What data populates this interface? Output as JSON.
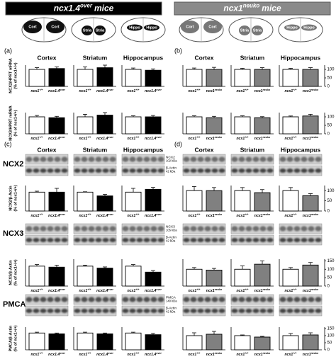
{
  "headers": [
    {
      "base": "ncx1.4",
      "sup": "over",
      "tail": "mice"
    },
    {
      "base": "ncx1",
      "sup": "neuko",
      "tail": "mice"
    }
  ],
  "brains": [
    [
      "Cort",
      "Cort"
    ],
    [
      "Stria",
      "Stria"
    ],
    [
      "Hippo",
      "Hippo"
    ]
  ],
  "panels": [
    "(a)",
    "(b)",
    "(c)",
    "(d)"
  ],
  "regions": [
    "Cortex",
    "Striatum",
    "Hippocampus"
  ],
  "protein_labels": [
    "NCX2",
    "NCX3",
    "PMCA"
  ],
  "blot_labels": [
    {
      "name": "NCX2",
      "kda": "102 kDa"
    },
    {
      "name": "NCX3",
      "kda": "105 kDa"
    },
    {
      "name": "PMCA",
      "kda": "140 kDa"
    }
  ],
  "actin": {
    "name": "β-Actin",
    "kda": "42 kDa"
  },
  "chart_data": [
    {
      "type": "bar",
      "categories": [
        {
          "base": "ncx1",
          "sup": "+/+"
        },
        {
          "base": "ncx1.4",
          "sup": "over"
        }
      ],
      "values": [
        100,
        105
      ],
      "errors": [
        10,
        10
      ],
      "colors": [
        "#ffffff",
        "#000000"
      ],
      "ylim": [
        0,
        125
      ],
      "ylabel": [
        "NCX2/HPRT mRNA",
        "(% of ncx1+/+)"
      ]
    },
    {
      "type": "bar",
      "categories": [
        {
          "base": "ncx1",
          "sup": "+/+"
        },
        {
          "base": "ncx1.4",
          "sup": "over"
        }
      ],
      "values": [
        100,
        110
      ],
      "errors": [
        15,
        15
      ],
      "colors": [
        "#ffffff",
        "#000000"
      ],
      "ylim": [
        0,
        125
      ]
    },
    {
      "type": "bar",
      "categories": [
        {
          "base": "ncx1",
          "sup": "+/+"
        },
        {
          "base": "ncx1.4",
          "sup": "over"
        }
      ],
      "values": [
        100,
        95
      ],
      "errors": [
        8,
        8
      ],
      "colors": [
        "#ffffff",
        "#000000"
      ],
      "ylim": [
        0,
        125
      ]
    },
    {
      "type": "bar",
      "categories": [
        {
          "base": "ncx1",
          "sup": "+/+"
        },
        {
          "base": "ncx1.4",
          "sup": "over"
        }
      ],
      "values": [
        100,
        95
      ],
      "errors": [
        8,
        8
      ],
      "colors": [
        "#ffffff",
        "#000000"
      ],
      "ylim": [
        0,
        125
      ],
      "ylabel": [
        "NCX3/HPRT mRNA",
        "(% of ncx1+/+)"
      ]
    },
    {
      "type": "bar",
      "categories": [
        {
          "base": "ncx1",
          "sup": "+/+"
        },
        {
          "base": "ncx1.4",
          "sup": "over"
        }
      ],
      "values": [
        100,
        110
      ],
      "errors": [
        15,
        15
      ],
      "colors": [
        "#ffffff",
        "#000000"
      ],
      "ylim": [
        0,
        125
      ]
    },
    {
      "type": "bar",
      "categories": [
        {
          "base": "ncx1",
          "sup": "+/+"
        },
        {
          "base": "ncx1.4",
          "sup": "over"
        }
      ],
      "values": [
        100,
        100
      ],
      "errors": [
        6,
        8
      ],
      "colors": [
        "#ffffff",
        "#000000"
      ],
      "ylim": [
        0,
        125
      ]
    },
    {
      "type": "bar",
      "categories": [
        {
          "base": "ncx1",
          "sup": "+/+"
        },
        {
          "base": "ncx1",
          "sup": "neuko"
        }
      ],
      "values": [
        100,
        100
      ],
      "errors": [
        8,
        12
      ],
      "colors": [
        "#ffffff",
        "#808080"
      ],
      "ylim": [
        0,
        125
      ]
    },
    {
      "type": "bar",
      "categories": [
        {
          "base": "ncx1",
          "sup": "+/+"
        },
        {
          "base": "ncx1",
          "sup": "neuko"
        }
      ],
      "values": [
        100,
        100
      ],
      "errors": [
        6,
        10
      ],
      "colors": [
        "#ffffff",
        "#808080"
      ],
      "ylim": [
        0,
        125
      ]
    },
    {
      "type": "bar",
      "categories": [
        {
          "base": "ncx1",
          "sup": "+/+"
        },
        {
          "base": "ncx1",
          "sup": "neuko"
        }
      ],
      "values": [
        100,
        100
      ],
      "errors": [
        6,
        10
      ],
      "colors": [
        "#ffffff",
        "#808080"
      ],
      "ylim": [
        0,
        125
      ],
      "yticks": [
        0,
        50,
        100
      ]
    },
    {
      "type": "bar",
      "categories": [
        {
          "base": "ncx1",
          "sup": "+/+"
        },
        {
          "base": "ncx1",
          "sup": "neuko"
        }
      ],
      "values": [
        100,
        95
      ],
      "errors": [
        6,
        8
      ],
      "colors": [
        "#ffffff",
        "#808080"
      ],
      "ylim": [
        0,
        125
      ]
    },
    {
      "type": "bar",
      "categories": [
        {
          "base": "ncx1",
          "sup": "+/+"
        },
        {
          "base": "ncx1",
          "sup": "neuko"
        }
      ],
      "values": [
        100,
        95
      ],
      "errors": [
        6,
        6
      ],
      "colors": [
        "#ffffff",
        "#808080"
      ],
      "ylim": [
        0,
        125
      ]
    },
    {
      "type": "bar",
      "categories": [
        {
          "base": "ncx1",
          "sup": "+/+"
        },
        {
          "base": "ncx1",
          "sup": "neuko"
        }
      ],
      "values": [
        100,
        105
      ],
      "errors": [
        5,
        10
      ],
      "colors": [
        "#ffffff",
        "#808080"
      ],
      "ylim": [
        0,
        125
      ],
      "yticks": [
        0,
        50,
        100
      ]
    },
    {
      "type": "bar",
      "categories": [
        {
          "base": "ncx1",
          "sup": "+/+"
        },
        {
          "base": "ncx1.4",
          "sup": "over"
        }
      ],
      "values": [
        100,
        100
      ],
      "errors": [
        5,
        20
      ],
      "colors": [
        "#ffffff",
        "#000000"
      ],
      "ylim": [
        0,
        135
      ],
      "ylabel": [
        "NCX2/β-Actin",
        "(% of ncx1+/+)"
      ]
    },
    {
      "type": "bar",
      "categories": [
        {
          "base": "ncx1",
          "sup": "+/+"
        },
        {
          "base": "ncx1.4",
          "sup": "over"
        }
      ],
      "values": [
        100,
        80
      ],
      "errors": [
        2,
        8
      ],
      "colors": [
        "#ffffff",
        "#000000"
      ],
      "ylim": [
        0,
        135
      ]
    },
    {
      "type": "bar",
      "categories": [
        {
          "base": "ncx1",
          "sup": "+/+"
        },
        {
          "base": "ncx1.4",
          "sup": "over"
        }
      ],
      "values": [
        100,
        115
      ],
      "errors": [
        20,
        10
      ],
      "colors": [
        "#ffffff",
        "#000000"
      ],
      "ylim": [
        0,
        135
      ]
    },
    {
      "type": "bar",
      "categories": [
        {
          "base": "ncx1",
          "sup": "+/+"
        },
        {
          "base": "ncx1.4",
          "sup": "over"
        }
      ],
      "values": [
        100,
        95
      ],
      "errors": [
        8,
        10
      ],
      "colors": [
        "#ffffff",
        "#000000"
      ],
      "ylim": [
        0,
        135
      ],
      "ylabel": [
        "NCX3/β-Actin",
        "(% of ncx1+/+)"
      ]
    },
    {
      "type": "bar",
      "categories": [
        {
          "base": "ncx1",
          "sup": "+/+"
        },
        {
          "base": "ncx1.4",
          "sup": "over"
        }
      ],
      "values": [
        100,
        90
      ],
      "errors": [
        5,
        6
      ],
      "colors": [
        "#ffffff",
        "#000000"
      ],
      "ylim": [
        0,
        135
      ]
    },
    {
      "type": "bar",
      "categories": [
        {
          "base": "ncx1",
          "sup": "+/+"
        },
        {
          "base": "ncx1.4",
          "sup": "over"
        }
      ],
      "values": [
        100,
        70
      ],
      "errors": [
        8,
        8
      ],
      "colors": [
        "#ffffff",
        "#000000"
      ],
      "ylim": [
        0,
        135
      ]
    },
    {
      "type": "bar",
      "categories": [
        {
          "base": "ncx1",
          "sup": "+/+"
        },
        {
          "base": "ncx1.4",
          "sup": "over"
        }
      ],
      "values": [
        100,
        95
      ],
      "errors": [
        5,
        5
      ],
      "colors": [
        "#ffffff",
        "#000000"
      ],
      "ylim": [
        0,
        135
      ],
      "ylabel": [
        "PMCA/β-Actin",
        "(% of ncx1+/+)"
      ]
    },
    {
      "type": "bar",
      "categories": [
        {
          "base": "ncx1",
          "sup": "+/+"
        },
        {
          "base": "ncx1.4",
          "sup": "over"
        }
      ],
      "values": [
        100,
        95
      ],
      "errors": [
        5,
        5
      ],
      "colors": [
        "#ffffff",
        "#000000"
      ],
      "ylim": [
        0,
        135
      ]
    },
    {
      "type": "bar",
      "categories": [
        {
          "base": "ncx1",
          "sup": "+/+"
        },
        {
          "base": "ncx1.4",
          "sup": "over"
        }
      ],
      "values": [
        100,
        90
      ],
      "errors": [
        5,
        8
      ],
      "colors": [
        "#ffffff",
        "#000000"
      ],
      "ylim": [
        0,
        135
      ]
    },
    {
      "type": "bar",
      "categories": [
        {
          "base": "ncx1",
          "sup": "+/+"
        },
        {
          "base": "ncx1",
          "sup": "neuko"
        }
      ],
      "values": [
        100,
        100
      ],
      "errors": [
        20,
        15
      ],
      "colors": [
        "#ffffff",
        "#808080"
      ],
      "ylim": [
        0,
        125
      ]
    },
    {
      "type": "bar",
      "categories": [
        {
          "base": "ncx1",
          "sup": "+/+"
        },
        {
          "base": "ncx1",
          "sup": "neuko"
        }
      ],
      "values": [
        100,
        90
      ],
      "errors": [
        15,
        15
      ],
      "colors": [
        "#ffffff",
        "#808080"
      ],
      "ylim": [
        0,
        125
      ]
    },
    {
      "type": "bar",
      "categories": [
        {
          "base": "ncx1",
          "sup": "+/+"
        },
        {
          "base": "ncx1",
          "sup": "neuko"
        }
      ],
      "values": [
        100,
        75
      ],
      "errors": [
        15,
        10
      ],
      "colors": [
        "#ffffff",
        "#808080"
      ],
      "ylim": [
        0,
        125
      ],
      "yticks": [
        0,
        50,
        100
      ]
    },
    {
      "type": "bar",
      "categories": [
        {
          "base": "ncx1",
          "sup": "+/+"
        },
        {
          "base": "ncx1",
          "sup": "neuko"
        }
      ],
      "values": [
        100,
        95
      ],
      "errors": [
        10,
        10
      ],
      "colors": [
        "#ffffff",
        "#808080"
      ],
      "ylim": [
        0,
        160
      ]
    },
    {
      "type": "bar",
      "categories": [
        {
          "base": "ncx1",
          "sup": "+/+"
        },
        {
          "base": "ncx1",
          "sup": "neuko"
        }
      ],
      "values": [
        100,
        130
      ],
      "errors": [
        20,
        20
      ],
      "colors": [
        "#ffffff",
        "#808080"
      ],
      "ylim": [
        0,
        160
      ]
    },
    {
      "type": "bar",
      "categories": [
        {
          "base": "ncx1",
          "sup": "+/+"
        },
        {
          "base": "ncx1",
          "sup": "neuko"
        }
      ],
      "values": [
        100,
        125
      ],
      "errors": [
        10,
        15
      ],
      "colors": [
        "#ffffff",
        "#808080"
      ],
      "ylim": [
        0,
        160
      ],
      "yticks": [
        0,
        50,
        100,
        150
      ]
    },
    {
      "type": "bar",
      "categories": [
        {
          "base": "ncx1",
          "sup": "+/+"
        },
        {
          "base": "ncx1",
          "sup": "neuko"
        }
      ],
      "values": [
        100,
        110
      ],
      "errors": [
        20,
        20
      ],
      "colors": [
        "#ffffff",
        "#808080"
      ],
      "ylim": [
        0,
        160
      ]
    },
    {
      "type": "bar",
      "categories": [
        {
          "base": "ncx1",
          "sup": "+/+"
        },
        {
          "base": "ncx1",
          "sup": "neuko"
        }
      ],
      "values": [
        100,
        90
      ],
      "errors": [
        5,
        5
      ],
      "colors": [
        "#ffffff",
        "#808080"
      ],
      "ylim": [
        0,
        160
      ]
    },
    {
      "type": "bar",
      "categories": [
        {
          "base": "ncx1",
          "sup": "+/+"
        },
        {
          "base": "ncx1",
          "sup": "neuko"
        }
      ],
      "values": [
        100,
        105
      ],
      "errors": [
        15,
        15
      ],
      "colors": [
        "#ffffff",
        "#808080"
      ],
      "ylim": [
        0,
        160
      ],
      "yticks": [
        0,
        50,
        100,
        150
      ]
    }
  ]
}
